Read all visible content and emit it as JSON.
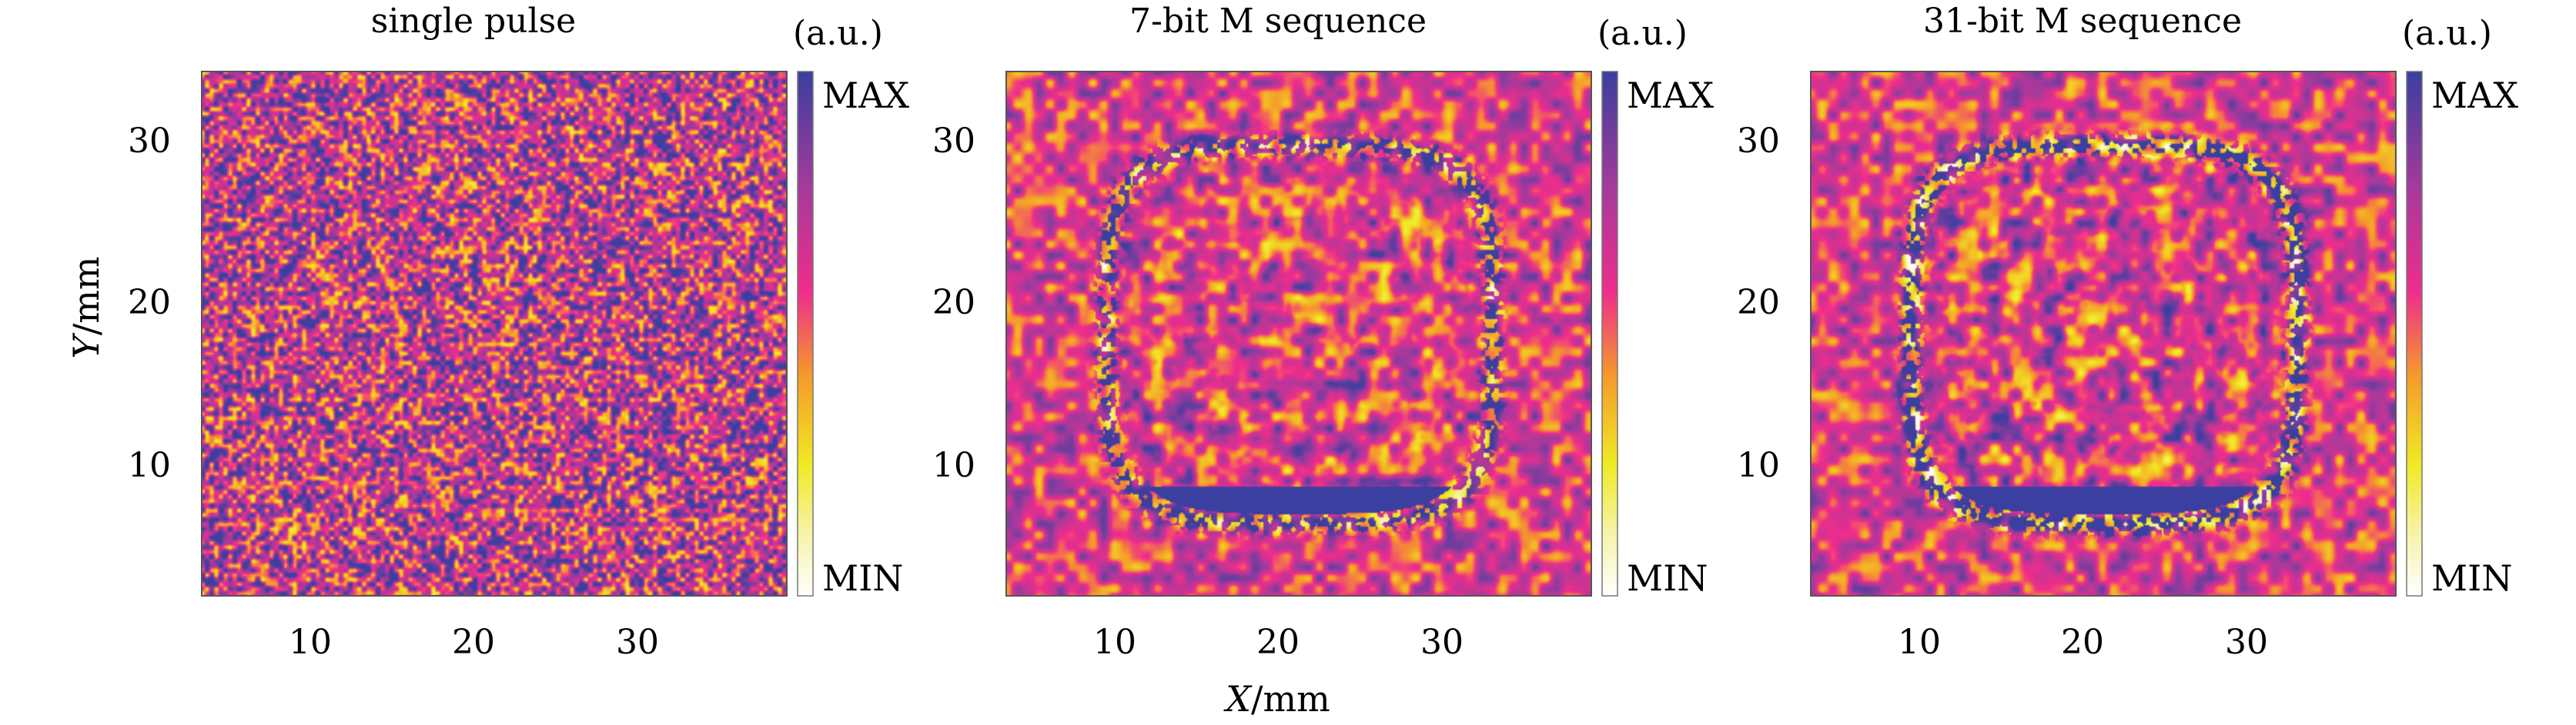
{
  "chart_data": [
    {
      "type": "heatmap",
      "title": "single pulse",
      "pattern": "speckle",
      "colorbar": {
        "unit": "(a.u.)",
        "max_label": "MAX",
        "min_label": "MIN"
      },
      "x_ticks": [
        "10",
        "20",
        "30"
      ],
      "y_ticks": [
        "30",
        "20",
        "10"
      ],
      "xlim": [
        3,
        39
      ],
      "ylim": [
        2,
        34
      ],
      "ylabel": "Y/mm"
    },
    {
      "type": "heatmap",
      "title": "7-bit M sequence",
      "pattern": "square-ring",
      "colorbar": {
        "unit": "(a.u.)",
        "max_label": "MAX",
        "min_label": "MIN"
      },
      "x_ticks": [
        "10",
        "20",
        "30"
      ],
      "y_ticks": [
        "30",
        "20",
        "10"
      ],
      "xlim": [
        3,
        39
      ],
      "ylim": [
        2,
        34
      ],
      "xlabel": "X/mm"
    },
    {
      "type": "heatmap",
      "title": "31-bit M sequence",
      "pattern": "square-ring-sharp",
      "colorbar": {
        "unit": "(a.u.)",
        "max_label": "MAX",
        "min_label": "MIN"
      },
      "x_ticks": [
        "10",
        "20",
        "30"
      ],
      "y_ticks": [
        "30",
        "20",
        "10"
      ],
      "xlim": [
        3,
        39
      ],
      "ylim": [
        2,
        34
      ]
    }
  ],
  "colors": {
    "min": "#ffffff",
    "low": "#f0ea24",
    "mid_low": "#f59a2a",
    "mid": "#ef2d8c",
    "mid_high": "#a43a9c",
    "max": "#3a3fa0"
  }
}
